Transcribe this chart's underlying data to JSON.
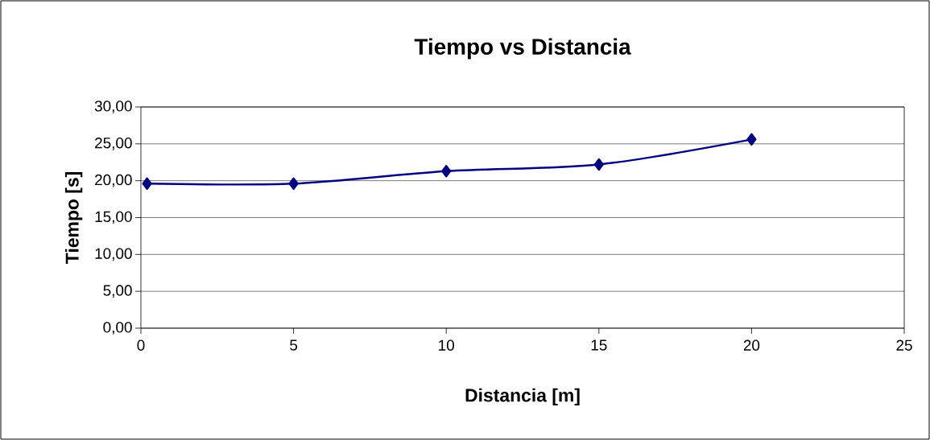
{
  "chart_data": {
    "type": "line",
    "title": "Tiempo vs Distancia",
    "xlabel": "Distancia [m]",
    "ylabel": "Tiempo [s]",
    "x": [
      0.2,
      5,
      10,
      15,
      20
    ],
    "series": [
      {
        "color": "#000080",
        "values": [
          19.6,
          19.6,
          21.3,
          22.2,
          25.6
        ]
      }
    ],
    "marker": "diamond",
    "line_style": "solid",
    "grid": "y",
    "xlim": [
      0,
      25
    ],
    "xticks": [
      0,
      5,
      10,
      15,
      20,
      25
    ],
    "ylim": [
      0,
      30
    ],
    "yticks": [
      {
        "value": 0,
        "label": "0,00"
      },
      {
        "value": 5,
        "label": "5,00"
      },
      {
        "value": 10,
        "label": "10,00"
      },
      {
        "value": 15,
        "label": "15,00"
      },
      {
        "value": 20,
        "label": "20,00"
      },
      {
        "value": 25,
        "label": "25,00"
      },
      {
        "value": 30,
        "label": "30,00"
      }
    ]
  }
}
